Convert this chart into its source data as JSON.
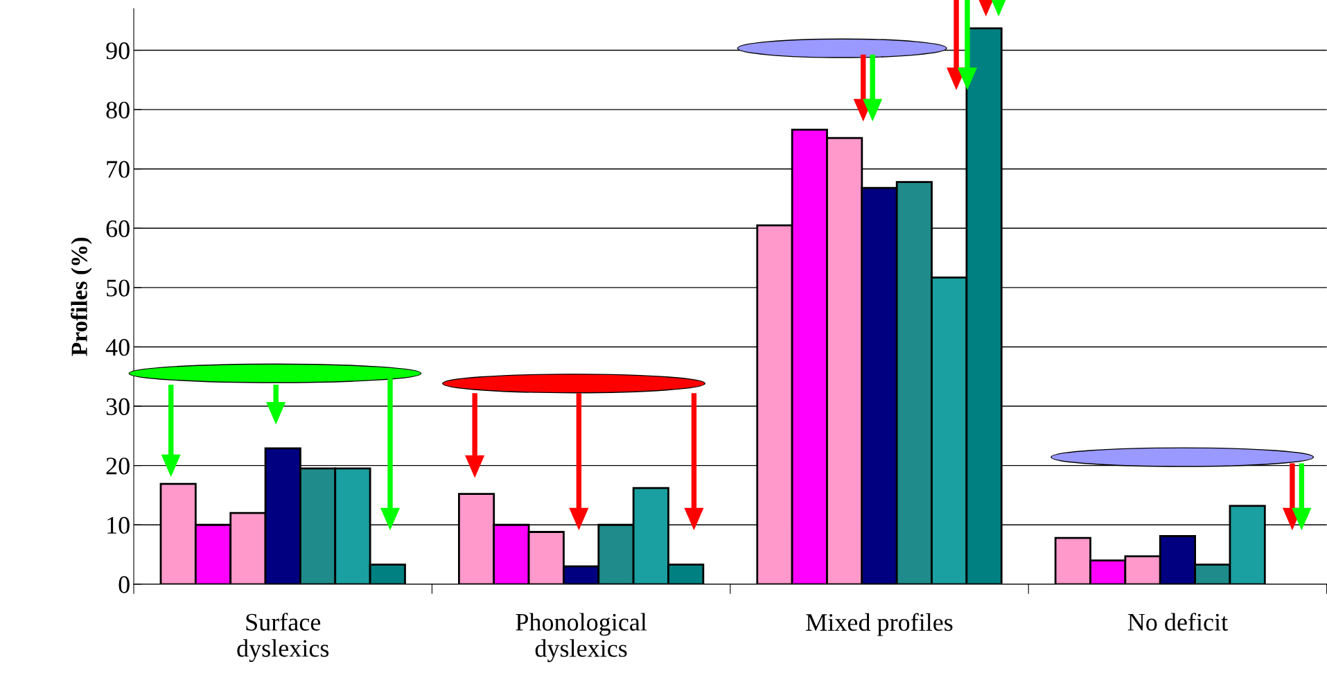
{
  "chart_data": {
    "type": "bar",
    "ylabel": "Profiles (%)",
    "categories": [
      "Surface\ndyslexics",
      "Phonological\ndyslexics",
      "Mixed profiles",
      "No deficit"
    ],
    "series": [
      {
        "color": "#ff99cc",
        "values": [
          16.9,
          15.2,
          60.5,
          7.8
        ]
      },
      {
        "color": "#ff00ff",
        "values": [
          10,
          10,
          76.6,
          4.0
        ]
      },
      {
        "color": "#ff99cc",
        "values": [
          12,
          8.8,
          75.2,
          4.7
        ]
      },
      {
        "color": "#000080",
        "values": [
          22.9,
          3.0,
          66.8,
          8.1
        ]
      },
      {
        "color": "#1f8b8b",
        "values": [
          19.5,
          10,
          67.8,
          3.3
        ]
      },
      {
        "color": "#1aa0a0",
        "values": [
          19.5,
          16.2,
          51.7,
          13.2
        ]
      },
      {
        "color": "#008080",
        "values": [
          3.3,
          3.3,
          93.7,
          null
        ]
      }
    ],
    "ylim": [
      0,
      97
    ],
    "yticks": [
      0,
      10,
      20,
      30,
      40,
      50,
      60,
      70,
      80,
      90
    ],
    "grid": "y"
  }
}
